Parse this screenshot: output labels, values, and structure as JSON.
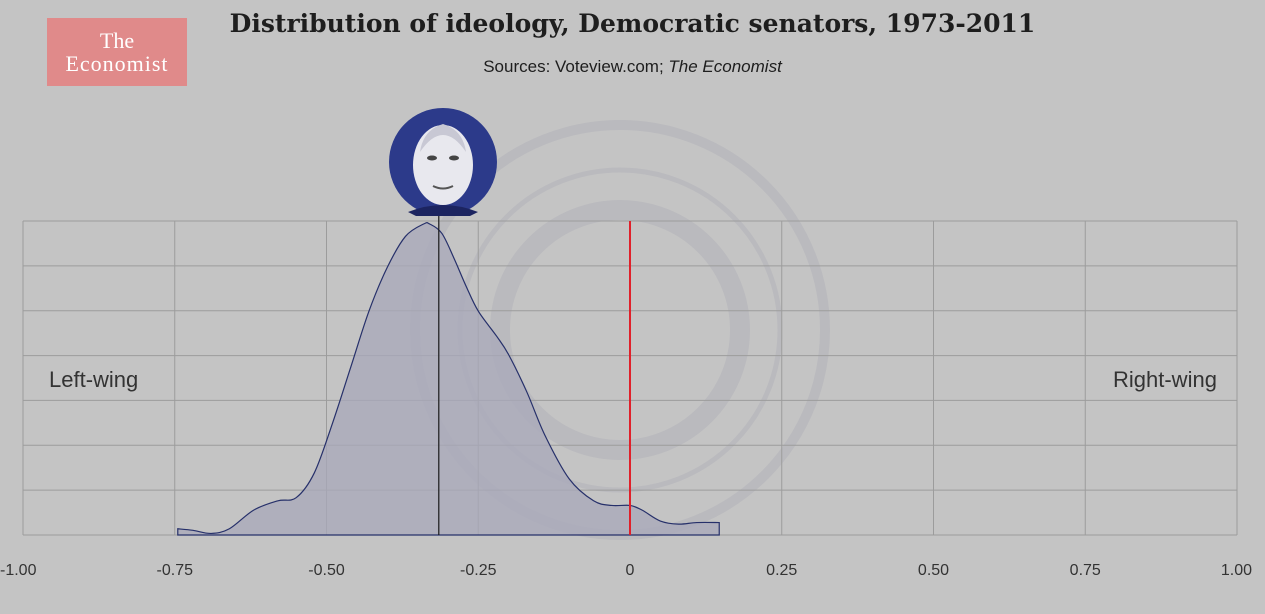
{
  "logo": {
    "line1": "The",
    "line2": "Economist"
  },
  "header": {
    "title": "Distribution of ideology, Democratic senators, 1973-2011",
    "sources_prefix": "Sources: Voteview.com; ",
    "sources_italic": "The Economist"
  },
  "labels": {
    "left": "Left-wing",
    "right": "Right-wing"
  },
  "colors": {
    "background": "#c4c4c4",
    "area_fill": "#a8a8ba",
    "area_stroke": "#26306a",
    "zero_line": "#e0202a",
    "marker_line": "#1a1a1a",
    "portrait_circle": "#2c3a8a",
    "grid": "#9c9c9c"
  },
  "chart_data": {
    "type": "area",
    "title": "Distribution of ideology, Democratic senators, 1973-2011",
    "xlim": [
      -1.0,
      1.0
    ],
    "x_ticks": [
      -1.0,
      -0.75,
      -0.5,
      -0.25,
      0,
      0.25,
      0.5,
      0.75,
      1.0
    ],
    "x_tick_labels": [
      "-1.00",
      "-0.75",
      "-0.50",
      "-0.25",
      "0",
      "0.25",
      "0.50",
      "0.75",
      "1.00"
    ],
    "y_relative_max": 1.0,
    "grid": true,
    "reference_lines": [
      {
        "x": 0,
        "color": "#e0202a"
      },
      {
        "x": -0.315,
        "color": "#1a1a1a",
        "icon": "portrait-icon"
      }
    ],
    "density": {
      "x": [
        -0.745,
        -0.72,
        -0.69,
        -0.66,
        -0.62,
        -0.58,
        -0.55,
        -0.52,
        -0.49,
        -0.46,
        -0.43,
        -0.4,
        -0.37,
        -0.34,
        -0.33,
        -0.31,
        -0.29,
        -0.27,
        -0.25,
        -0.22,
        -0.2,
        -0.17,
        -0.14,
        -0.1,
        -0.06,
        -0.03,
        0,
        0.02,
        0.05,
        0.08,
        0.11,
        0.147
      ],
      "y": [
        0.02,
        0.015,
        0.005,
        0.02,
        0.08,
        0.11,
        0.12,
        0.2,
        0.36,
        0.54,
        0.72,
        0.86,
        0.96,
        1.0,
        1.0,
        0.97,
        0.89,
        0.8,
        0.72,
        0.64,
        0.58,
        0.46,
        0.32,
        0.18,
        0.11,
        0.095,
        0.095,
        0.08,
        0.045,
        0.035,
        0.04,
        0.04
      ]
    }
  }
}
